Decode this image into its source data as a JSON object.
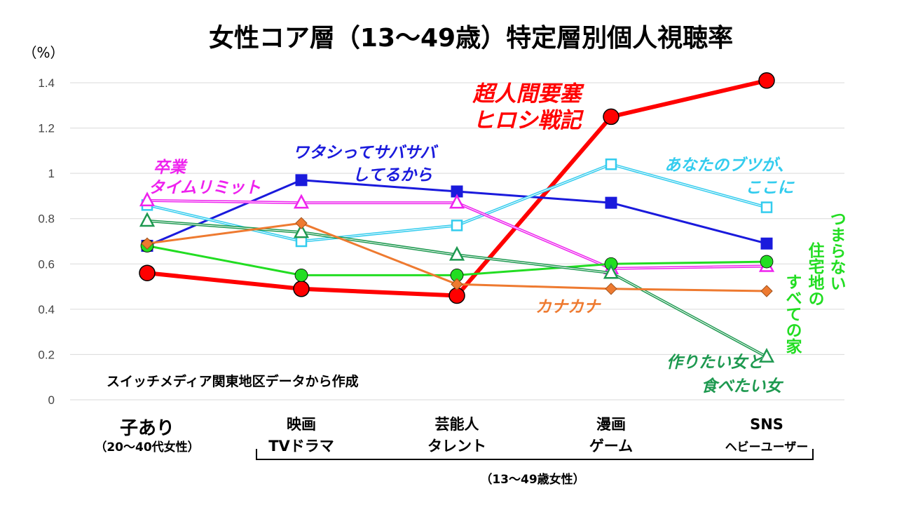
{
  "chart_data": {
    "type": "line",
    "title": "女性コア層（13～49歳）特定層別個人視聴率",
    "ylabel": "（%）",
    "ylim": [
      0,
      1.4
    ],
    "yticks": [
      "0",
      "0.2",
      "0.4",
      "0.6",
      "0.8",
      "1",
      "1.2",
      "1.4"
    ],
    "grid": true,
    "categories": [
      {
        "line1": "子あり",
        "line2": "（20～40代女性）"
      },
      {
        "line1": "映画",
        "line2": "TVドラマ"
      },
      {
        "line1": "芸能人",
        "line2": "タレント"
      },
      {
        "line1": "漫画",
        "line2": "ゲーム"
      },
      {
        "line1": "SNS",
        "line2": "ヘビーユーザー"
      }
    ],
    "group_label": "（13～49歳女性）",
    "source_note": "スイッチメディア関東地区データから作成",
    "series": [
      {
        "name": "超人間要塞ヒロシ戦記",
        "label_lines": [
          "超人間要塞",
          "ヒロシ戦記"
        ],
        "color": "#ff0000",
        "marker": "circle",
        "values": [
          0.56,
          0.49,
          0.46,
          1.25,
          1.41
        ]
      },
      {
        "name": "ワタシってサバサバしてるから",
        "label_lines": [
          "ワタシってサバサバ",
          "してるから"
        ],
        "color": "#1a1adc",
        "marker": "square",
        "values": [
          0.68,
          0.97,
          0.92,
          0.87,
          0.69
        ]
      },
      {
        "name": "あなたのブツが、ここに",
        "label_lines": [
          "あなたのブツが、",
          "ここに"
        ],
        "color": "#33ccee",
        "marker": "square-open",
        "values": [
          0.86,
          0.7,
          0.77,
          1.04,
          0.85
        ]
      },
      {
        "name": "卒業タイムリミット",
        "label_lines": [
          "卒業",
          "タイムリミット"
        ],
        "color": "#ee22ee",
        "marker": "triangle-open",
        "values": [
          0.88,
          0.87,
          0.87,
          0.58,
          0.59
        ]
      },
      {
        "name": "つまらない住宅地のすべての家",
        "label_lines": [
          "つまらない",
          "住宅地の",
          "すべての家"
        ],
        "color": "#22dd22",
        "marker": "circle",
        "values": [
          0.68,
          0.55,
          0.55,
          0.6,
          0.61
        ]
      },
      {
        "name": "作りたい女と食べたい女",
        "label_lines": [
          "作りたい女と",
          "食べたい女"
        ],
        "color": "#1e9950",
        "marker": "triangle-open",
        "values": [
          0.79,
          0.74,
          0.64,
          0.56,
          0.19
        ]
      },
      {
        "name": "カナカナ",
        "label_lines": [
          "カナカナ"
        ],
        "color": "#ee7a30",
        "marker": "diamond",
        "values": [
          0.69,
          0.78,
          0.51,
          0.49,
          0.48
        ]
      }
    ]
  }
}
